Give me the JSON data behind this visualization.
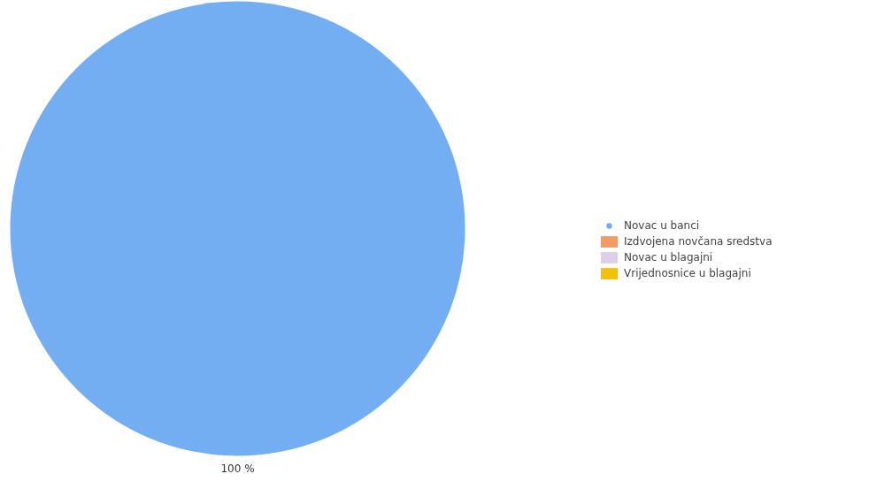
{
  "chart_data": {
    "type": "pie",
    "categories": [
      "Novac u banci",
      "Izdvojena novčana sredstva",
      "Novac u blagajni",
      "Vrijednosnice u blagajni"
    ],
    "values": [
      100,
      0,
      0,
      0
    ],
    "colors": [
      "#73adf2",
      "#f59a62",
      "#dcd0e8",
      "#f5c000"
    ],
    "value_labels": [
      "100 %",
      null,
      null,
      null
    ],
    "legend": "right"
  }
}
